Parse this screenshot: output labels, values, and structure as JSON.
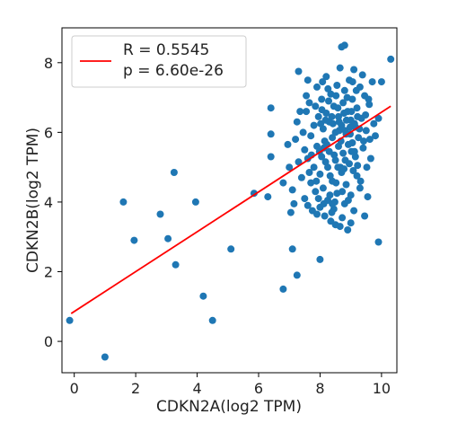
{
  "chart_data": {
    "type": "scatter",
    "xlabel": "CDKN2A(log2 TPM)",
    "ylabel": "CDKN2B(log2 TPM)",
    "xlim": [
      -0.4,
      10.5
    ],
    "ylim": [
      -0.9,
      9.0
    ],
    "xticks": [
      0,
      2,
      4,
      6,
      8,
      10
    ],
    "yticks": [
      0,
      2,
      4,
      6,
      8
    ],
    "grid": false,
    "legend_position": "top-left",
    "legend": [
      {
        "label": "R = 0.5545",
        "color": "#ff0000"
      },
      {
        "label": "p = 6.60e-26",
        "color": "#ff0000"
      }
    ],
    "fit_line": {
      "x": [
        -0.1,
        10.3
      ],
      "y": [
        0.8,
        6.75
      ],
      "color": "#ff0000"
    },
    "point_color": "#1f77b4",
    "series": [
      {
        "points": [
          [
            -0.15,
            0.6
          ],
          [
            1.0,
            -0.45
          ],
          [
            1.6,
            4.0
          ],
          [
            1.95,
            2.9
          ],
          [
            2.8,
            3.65
          ],
          [
            3.05,
            2.95
          ],
          [
            3.25,
            4.85
          ],
          [
            3.3,
            2.2
          ],
          [
            3.95,
            4.0
          ],
          [
            4.2,
            1.3
          ],
          [
            4.5,
            0.6
          ],
          [
            5.1,
            2.65
          ],
          [
            5.85,
            4.25
          ],
          [
            6.3,
            4.15
          ],
          [
            6.4,
            5.3
          ],
          [
            6.4,
            5.95
          ],
          [
            6.4,
            6.7
          ],
          [
            6.8,
            4.55
          ],
          [
            6.8,
            1.5
          ],
          [
            6.95,
            5.65
          ],
          [
            7.0,
            5.0
          ],
          [
            7.05,
            3.7
          ],
          [
            7.1,
            2.65
          ],
          [
            7.25,
            1.9
          ],
          [
            7.3,
            7.75
          ],
          [
            7.6,
            7.5
          ],
          [
            8.0,
            2.35
          ],
          [
            8.7,
            8.45
          ],
          [
            9.9,
            2.85
          ],
          [
            10.3,
            8.1
          ],
          [
            7.1,
            4.35
          ],
          [
            7.15,
            3.95
          ],
          [
            7.2,
            5.8
          ],
          [
            7.25,
            6.3
          ],
          [
            7.3,
            5.15
          ],
          [
            7.4,
            4.7
          ],
          [
            7.45,
            6.0
          ],
          [
            7.5,
            5.5
          ],
          [
            7.5,
            4.1
          ],
          [
            7.55,
            6.6
          ],
          [
            7.6,
            3.9
          ],
          [
            7.6,
            5.25
          ],
          [
            7.65,
            6.85
          ],
          [
            7.7,
            4.55
          ],
          [
            7.7,
            5.9
          ],
          [
            7.75,
            3.75
          ],
          [
            7.8,
            6.2
          ],
          [
            7.8,
            5.0
          ],
          [
            7.85,
            4.3
          ],
          [
            7.9,
            7.3
          ],
          [
            7.9,
            5.6
          ],
          [
            7.95,
            6.45
          ],
          [
            8.0,
            4.8
          ],
          [
            8.0,
            3.85
          ],
          [
            8.05,
            6.95
          ],
          [
            8.05,
            5.3
          ],
          [
            8.1,
            6.1
          ],
          [
            8.1,
            4.4
          ],
          [
            8.15,
            5.75
          ],
          [
            8.15,
            3.6
          ],
          [
            8.2,
            7.6
          ],
          [
            8.2,
            6.55
          ],
          [
            8.25,
            5.0
          ],
          [
            8.25,
            4.05
          ],
          [
            8.3,
            6.3
          ],
          [
            8.3,
            5.45
          ],
          [
            8.35,
            7.1
          ],
          [
            8.35,
            3.45
          ],
          [
            8.4,
            5.85
          ],
          [
            8.4,
            4.6
          ],
          [
            8.45,
            6.75
          ],
          [
            8.45,
            3.8
          ],
          [
            8.5,
            5.2
          ],
          [
            8.5,
            6.0
          ],
          [
            8.55,
            7.35
          ],
          [
            8.55,
            4.25
          ],
          [
            8.6,
            6.45
          ],
          [
            8.6,
            5.6
          ],
          [
            8.65,
            3.3
          ],
          [
            8.65,
            7.85
          ],
          [
            8.7,
            6.2
          ],
          [
            8.7,
            4.85
          ],
          [
            8.75,
            5.4
          ],
          [
            8.75,
            6.85
          ],
          [
            8.8,
            3.95
          ],
          [
            8.8,
            7.2
          ],
          [
            8.85,
            5.95
          ],
          [
            8.85,
            4.5
          ],
          [
            8.9,
            6.6
          ],
          [
            8.9,
            3.2
          ],
          [
            8.95,
            5.1
          ],
          [
            8.95,
            7.5
          ],
          [
            9.0,
            6.35
          ],
          [
            9.0,
            4.2
          ],
          [
            9.05,
            5.7
          ],
          [
            9.05,
            6.95
          ],
          [
            9.1,
            3.75
          ],
          [
            9.1,
            7.8
          ],
          [
            9.15,
            5.3
          ],
          [
            9.15,
            6.15
          ],
          [
            9.2,
            4.75
          ],
          [
            9.2,
            6.7
          ],
          [
            9.25,
            5.85
          ],
          [
            9.3,
            7.3
          ],
          [
            9.3,
            4.4
          ],
          [
            9.35,
            6.4
          ],
          [
            9.4,
            5.55
          ],
          [
            9.45,
            7.05
          ],
          [
            9.5,
            6.05
          ],
          [
            9.55,
            4.15
          ],
          [
            9.6,
            6.8
          ],
          [
            9.65,
            5.25
          ],
          [
            9.7,
            7.45
          ],
          [
            9.75,
            6.25
          ],
          [
            10.0,
            7.45
          ],
          [
            7.35,
            6.6
          ],
          [
            7.55,
            7.05
          ],
          [
            7.65,
            4.85
          ],
          [
            7.85,
            6.75
          ],
          [
            7.95,
            4.1
          ],
          [
            8.08,
            7.45
          ],
          [
            8.12,
            3.95
          ],
          [
            8.18,
            5.15
          ],
          [
            8.28,
            6.9
          ],
          [
            8.33,
            4.75
          ],
          [
            8.38,
            6.45
          ],
          [
            8.48,
            4.0
          ],
          [
            8.52,
            7.05
          ],
          [
            8.58,
            5.0
          ],
          [
            8.62,
            6.05
          ],
          [
            8.68,
            5.75
          ],
          [
            8.72,
            4.3
          ],
          [
            8.78,
            6.55
          ],
          [
            8.82,
            5.2
          ],
          [
            8.88,
            7.0
          ],
          [
            8.92,
            4.05
          ],
          [
            8.98,
            5.95
          ],
          [
            9.02,
            6.6
          ],
          [
            9.08,
            4.9
          ],
          [
            9.12,
            6.25
          ],
          [
            9.18,
            7.2
          ],
          [
            9.22,
            5.05
          ],
          [
            9.28,
            6.1
          ],
          [
            9.32,
            4.6
          ],
          [
            9.38,
            7.65
          ],
          [
            9.42,
            5.75
          ],
          [
            9.48,
            6.5
          ],
          [
            9.52,
            5.0
          ],
          [
            9.58,
            6.95
          ],
          [
            9.62,
            5.8
          ],
          [
            8.02,
            6.25
          ],
          [
            8.22,
            5.65
          ],
          [
            8.42,
            6.25
          ],
          [
            8.62,
            6.3
          ],
          [
            8.82,
            6.05
          ],
          [
            9.02,
            5.45
          ],
          [
            9.22,
            6.45
          ],
          [
            8.12,
            5.55
          ],
          [
            8.32,
            4.2
          ],
          [
            8.52,
            4.55
          ],
          [
            8.72,
            3.55
          ],
          [
            8.92,
            5.65
          ],
          [
            9.12,
            5.45
          ],
          [
            8.06,
            6.65
          ],
          [
            8.26,
            7.25
          ],
          [
            8.46,
            5.35
          ],
          [
            8.66,
            5.0
          ],
          [
            8.86,
            6.35
          ],
          [
            9.06,
            7.45
          ],
          [
            7.98,
            5.45
          ],
          [
            8.18,
            6.35
          ],
          [
            8.38,
            3.7
          ],
          [
            8.58,
            6.7
          ],
          [
            8.78,
            4.95
          ],
          [
            8.98,
            6.15
          ],
          [
            7.72,
            5.35
          ],
          [
            7.88,
            4.6
          ],
          [
            9.8,
            5.9
          ],
          [
            9.9,
            6.4
          ],
          [
            8.8,
            8.5
          ],
          [
            9.45,
            3.6
          ],
          [
            9.0,
            3.4
          ],
          [
            8.5,
            3.35
          ],
          [
            7.9,
            3.65
          ],
          [
            8.4,
            3.95
          ]
        ]
      }
    ]
  }
}
